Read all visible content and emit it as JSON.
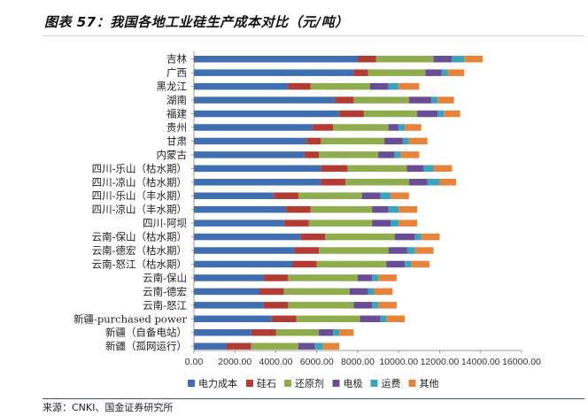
{
  "title": "图表 57：我国各地工业硅生产成本对比（元/吨）",
  "source": "来源：CNKI、国金证券研究所",
  "chart_data": {
    "type": "bar",
    "orientation": "horizontal",
    "stacked": true,
    "categories": [
      "吉林",
      "广西",
      "黑龙江",
      "湖南",
      "福建",
      "贵州",
      "甘肃",
      "内蒙古",
      "四川-乐山（枯水期）",
      "四川-凉山（枯水期）",
      "四川-乐山（丰水期）",
      "四川-凉山（丰水期）",
      "四川-阿坝",
      "云南-保山（枯水期）",
      "云南-德宏（枯水期）",
      "云南-怒江（枯水期）",
      "云南-保山",
      "云南-德宏",
      "云南-怒江",
      "新疆-purchased power",
      "新疆（自备电站）",
      "新疆（孤网运行）"
    ],
    "series": [
      {
        "name": "电力成本",
        "color": "#3f6fb0",
        "values": [
          8000,
          7800,
          4600,
          6900,
          7100,
          5800,
          5500,
          5400,
          6200,
          6200,
          3900,
          4500,
          4400,
          5200,
          4900,
          4800,
          3400,
          3200,
          3400,
          3800,
          2800,
          1600
        ]
      },
      {
        "name": "硅石",
        "color": "#b23b34",
        "values": [
          900,
          700,
          1100,
          900,
          1200,
          1000,
          700,
          700,
          1300,
          1200,
          1200,
          1200,
          1200,
          1200,
          1200,
          1200,
          1200,
          1200,
          1200,
          1200,
          1200,
          1200
        ]
      },
      {
        "name": "还原剂",
        "color": "#8fad4e",
        "values": [
          2800,
          2800,
          2900,
          2700,
          2600,
          2700,
          3100,
          2900,
          2900,
          3100,
          3100,
          3000,
          3100,
          3400,
          3400,
          3400,
          3400,
          3200,
          3200,
          3100,
          2100,
          2300
        ]
      },
      {
        "name": "电极",
        "color": "#6a4e95",
        "values": [
          900,
          800,
          900,
          1100,
          1000,
          500,
          900,
          800,
          800,
          900,
          900,
          800,
          900,
          1000,
          900,
          900,
          700,
          900,
          900,
          1000,
          700,
          800
        ]
      },
      {
        "name": "运费",
        "color": "#3aa3bd",
        "values": [
          600,
          300,
          500,
          300,
          300,
          300,
          300,
          300,
          500,
          600,
          500,
          500,
          400,
          300,
          400,
          300,
          300,
          300,
          300,
          300,
          300,
          400
        ]
      },
      {
        "name": "其他",
        "color": "#e8833a",
        "values": [
          900,
          800,
          1000,
          800,
          800,
          800,
          900,
          900,
          900,
          800,
          900,
          900,
          900,
          900,
          900,
          900,
          900,
          900,
          900,
          900,
          700,
          800
        ]
      }
    ],
    "xlim": [
      0,
      16000
    ],
    "xticks": [
      "0.00",
      "2000.00",
      "4000.00",
      "6000.00",
      "8000.00",
      "10000.00",
      "12000.00",
      "14000.00",
      "16000.00"
    ],
    "grid": false,
    "legend_position": "bottom"
  }
}
